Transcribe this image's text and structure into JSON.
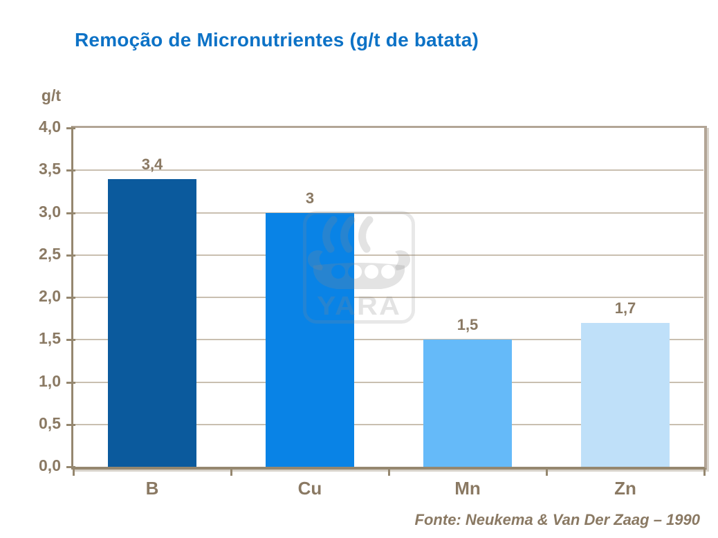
{
  "title": "Remoção de Micronutrientes (g/t de batata)",
  "y_axis_unit": "g/t",
  "source": "Fonte: Neukema & Van Der Zaag – 1990",
  "watermark": "YARA",
  "colors": {
    "title": "#0D72C6",
    "text": "#8A7963",
    "axis": "#95876F",
    "frame": "#B2A596",
    "shadow": "#D8D3CB",
    "gridline": "#C9BFB0"
  },
  "chart_data": {
    "type": "bar",
    "categories": [
      "B",
      "Cu",
      "Mn",
      "Zn"
    ],
    "values": [
      3.4,
      3,
      1.5,
      1.7
    ],
    "value_labels": [
      "3,4",
      "3",
      "1,5",
      "1,7"
    ],
    "bar_colors": [
      "#0B5A9D",
      "#0983E6",
      "#65BAF9",
      "#BFE0F9"
    ],
    "title": "Remoção de Micronutrientes (g/t de batata)",
    "xlabel": "",
    "ylabel": "g/t",
    "ylim": [
      0,
      4
    ],
    "ytick_step": 0.5,
    "ytick_labels": [
      "0,0",
      "0,5",
      "1,0",
      "1,5",
      "2,0",
      "2,5",
      "3,0",
      "3,5",
      "4,0"
    ],
    "grid": true,
    "legend": false
  }
}
